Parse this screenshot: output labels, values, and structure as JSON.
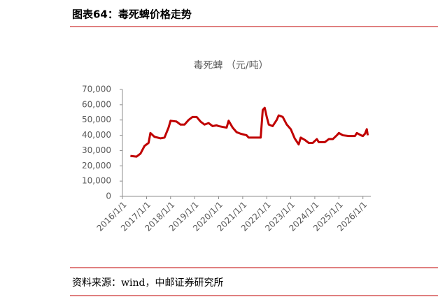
{
  "header": {
    "title": "图表64：毒死蜱价格走势"
  },
  "footer": {
    "source": "资料来源：wind，中邮证券研究所"
  },
  "chart_data": {
    "type": "line",
    "title": "毒死蜱 （元/吨）",
    "x": [
      "2016/5/1",
      "2016/8/1",
      "2016/10/1",
      "2016/12/1",
      "2017/2/1",
      "2017/3/1",
      "2017/5/1",
      "2017/8/1",
      "2017/10/1",
      "2017/12/1",
      "2018/1/1",
      "2018/4/1",
      "2018/6/1",
      "2018/8/1",
      "2018/10/1",
      "2018/12/1",
      "2019/2/1",
      "2019/4/1",
      "2019/6/1",
      "2019/8/1",
      "2019/10/1",
      "2019/12/1",
      "2020/1/1",
      "2020/3/1",
      "2020/5/1",
      "2020/6/1",
      "2020/8/1",
      "2020/10/1",
      "2020/12/1",
      "2021/3/1",
      "2021/4/1",
      "2021/8/1",
      "2021/10/1",
      "2021/11/1",
      "2021/12/1",
      "2022/1/1",
      "2022/2/1",
      "2022/4/1",
      "2022/6/1",
      "2022/7/1",
      "2022/9/1",
      "2022/11/1",
      "2023/1/1",
      "2023/3/1",
      "2023/5/1",
      "2023/6/1",
      "2023/8/1",
      "2023/10/1",
      "2023/12/1",
      "2024/2/1",
      "2024/3/1",
      "2024/6/1",
      "2024/8/1",
      "2024/10/1",
      "2024/12/1",
      "2025/1/1",
      "2025/3/1",
      "2025/6/1",
      "2025/9/1",
      "2025/10/1",
      "2025/12/1",
      "2026/1/1",
      "2026/2/1",
      "2026/3/1",
      "2026/3/15"
    ],
    "series": [
      {
        "name": "毒死蜱",
        "color": "#c00000",
        "values": [
          26500,
          26000,
          28000,
          33000,
          35000,
          41500,
          39000,
          38000,
          38500,
          45000,
          49500,
          49000,
          47000,
          47000,
          50000,
          52000,
          52000,
          49000,
          47000,
          48000,
          46000,
          46500,
          46000,
          45500,
          45000,
          49500,
          45000,
          42000,
          41000,
          40000,
          38500,
          38500,
          38500,
          56500,
          58000,
          52000,
          47000,
          46000,
          50000,
          53000,
          52000,
          47000,
          44000,
          38000,
          34000,
          38500,
          37000,
          35000,
          35000,
          37500,
          35500,
          35500,
          37500,
          37500,
          40000,
          41500,
          40000,
          39500,
          39500,
          41500,
          40000,
          39500,
          41000,
          44000,
          40000
        ]
      }
    ],
    "xlim": [
      "2016/1/1",
      "2026/5/1"
    ],
    "xticks": [
      "2016/1/1",
      "2017/1/1",
      "2018/1/1",
      "2019/1/1",
      "2020/1/1",
      "2021/1/1",
      "2022/1/1",
      "2023/1/1",
      "2024/1/1",
      "2025/1/1",
      "2026/1/1"
    ],
    "ylim": [
      0,
      70000
    ],
    "yticks": [
      0,
      {
        "value": 10000,
        "label": "10,000"
      },
      {
        "value": 20000,
        "label": "20,000"
      },
      {
        "value": 30000,
        "label": "30,000"
      },
      {
        "value": 40000,
        "label": "40,000"
      },
      {
        "value": 50000,
        "label": "50,000"
      },
      {
        "value": 60000,
        "label": "60,000"
      },
      {
        "value": 70000,
        "label": "70,000"
      }
    ],
    "grid": false
  }
}
